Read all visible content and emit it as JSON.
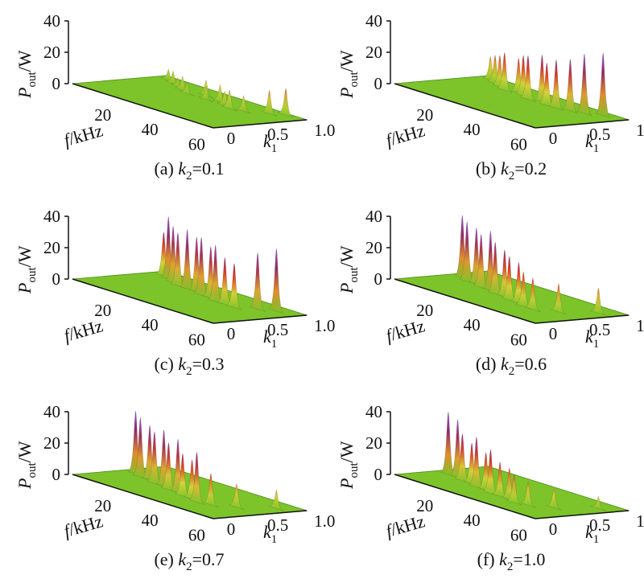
{
  "chart_data": [
    {
      "type": "surface3d",
      "caption": {
        "prefix": "(a) ",
        "var": "k",
        "sub": "2",
        "value": "=0.1"
      },
      "zlabel": {
        "var": "P",
        "sub": "out",
        "unit": "/W"
      },
      "xlabel": {
        "var": "f",
        "unit": "/kHz"
      },
      "ylabel": {
        "var": "k",
        "sub": "1"
      },
      "z_ticks": [
        "40",
        "20",
        "0"
      ],
      "x_ticks": [
        "20",
        "40",
        "60"
      ],
      "y_ticks": [
        "0",
        "0.5",
        "1.0"
      ],
      "zlim": [
        0,
        40
      ],
      "xlim": [
        5,
        65
      ],
      "ylim": [
        0,
        1
      ],
      "peaks": [
        {
          "f": 10,
          "k1": 0.9,
          "p": 7
        },
        {
          "f": 14,
          "k1": 0.85,
          "p": 8
        },
        {
          "f": 18,
          "k1": 0.8,
          "p": 6
        },
        {
          "f": 22,
          "k1": 0.75,
          "p": 9
        },
        {
          "f": 26,
          "k1": 0.7,
          "p": 7
        },
        {
          "f": 30,
          "k1": 0.8,
          "p": 10
        },
        {
          "f": 34,
          "k1": 0.7,
          "p": 8
        },
        {
          "f": 38,
          "k1": 0.75,
          "p": 11
        },
        {
          "f": 42,
          "k1": 0.7,
          "p": 9
        },
        {
          "f": 46,
          "k1": 0.65,
          "p": 12
        },
        {
          "f": 50,
          "k1": 0.7,
          "p": 10
        },
        {
          "f": 55,
          "k1": 0.85,
          "p": 15
        },
        {
          "f": 58,
          "k1": 0.95,
          "p": 17
        }
      ],
      "colormap": [
        "#7cc42a",
        "#d8d23a",
        "#e8401e",
        "#8a2a6a",
        "#9a52d8"
      ]
    },
    {
      "type": "surface3d",
      "caption": {
        "prefix": "(b) ",
        "var": "k",
        "sub": "2",
        "value": "=0.2"
      },
      "zlabel": {
        "var": "P",
        "sub": "out",
        "unit": "/W"
      },
      "xlabel": {
        "var": "f",
        "unit": "/kHz"
      },
      "ylabel": {
        "var": "k",
        "sub": "1"
      },
      "z_ticks": [
        "40",
        "20",
        "0"
      ],
      "x_ticks": [
        "20",
        "40",
        "60"
      ],
      "y_ticks": [
        "0",
        "0.5",
        "1.0"
      ],
      "zlim": [
        0,
        40
      ],
      "xlim": [
        5,
        65
      ],
      "ylim": [
        0,
        1
      ],
      "peaks": [
        {
          "f": 10,
          "k1": 0.9,
          "p": 15
        },
        {
          "f": 14,
          "k1": 0.85,
          "p": 18
        },
        {
          "f": 18,
          "k1": 0.8,
          "p": 20
        },
        {
          "f": 22,
          "k1": 0.75,
          "p": 24
        },
        {
          "f": 26,
          "k1": 0.8,
          "p": 22
        },
        {
          "f": 30,
          "k1": 0.75,
          "p": 26
        },
        {
          "f": 34,
          "k1": 0.7,
          "p": 28
        },
        {
          "f": 38,
          "k1": 0.75,
          "p": 30
        },
        {
          "f": 42,
          "k1": 0.7,
          "p": 27
        },
        {
          "f": 46,
          "k1": 0.7,
          "p": 31
        },
        {
          "f": 50,
          "k1": 0.75,
          "p": 33
        },
        {
          "f": 54,
          "k1": 0.8,
          "p": 38
        },
        {
          "f": 58,
          "k1": 0.9,
          "p": 40
        }
      ],
      "colormap": [
        "#7cc42a",
        "#d8d23a",
        "#e8401e",
        "#8a2a6a",
        "#9a52d8"
      ]
    },
    {
      "type": "surface3d",
      "caption": {
        "prefix": "(c) ",
        "var": "k",
        "sub": "2",
        "value": "=0.3"
      },
      "zlabel": {
        "var": "P",
        "sub": "out",
        "unit": "/W"
      },
      "xlabel": {
        "var": "f",
        "unit": "/kHz"
      },
      "ylabel": {
        "var": "k",
        "sub": "1"
      },
      "z_ticks": [
        "40",
        "20",
        "0"
      ],
      "x_ticks": [
        "20",
        "40",
        "60"
      ],
      "y_ticks": [
        "0",
        "0.5",
        "1.0"
      ],
      "zlim": [
        0,
        40
      ],
      "xlim": [
        5,
        65
      ],
      "ylim": [
        0,
        1
      ],
      "peaks": [
        {
          "f": 10,
          "k1": 0.85,
          "p": 28
        },
        {
          "f": 14,
          "k1": 0.8,
          "p": 40
        },
        {
          "f": 18,
          "k1": 0.75,
          "p": 36
        },
        {
          "f": 22,
          "k1": 0.7,
          "p": 34
        },
        {
          "f": 26,
          "k1": 0.7,
          "p": 38
        },
        {
          "f": 30,
          "k1": 0.7,
          "p": 35
        },
        {
          "f": 34,
          "k1": 0.65,
          "p": 37
        },
        {
          "f": 38,
          "k1": 0.65,
          "p": 33
        },
        {
          "f": 42,
          "k1": 0.6,
          "p": 36
        },
        {
          "f": 46,
          "k1": 0.6,
          "p": 30
        },
        {
          "f": 50,
          "k1": 0.6,
          "p": 28
        },
        {
          "f": 54,
          "k1": 0.75,
          "p": 36
        },
        {
          "f": 58,
          "k1": 0.85,
          "p": 40
        }
      ],
      "colormap": [
        "#7cc42a",
        "#d8d23a",
        "#e8401e",
        "#8a2a6a",
        "#9a52d8"
      ]
    },
    {
      "type": "surface3d",
      "caption": {
        "prefix": "(d) ",
        "var": "k",
        "sub": "2",
        "value": "=0.6"
      },
      "zlabel": {
        "var": "P",
        "sub": "out",
        "unit": "/W"
      },
      "xlabel": {
        "var": "f",
        "unit": "/kHz"
      },
      "ylabel": {
        "var": "k",
        "sub": "1"
      },
      "z_ticks": [
        "40",
        "20",
        "0"
      ],
      "x_ticks": [
        "20",
        "40",
        "60"
      ],
      "y_ticks": [
        "0",
        "0.5",
        "1.0"
      ],
      "zlim": [
        0,
        40
      ],
      "xlim": [
        5,
        65
      ],
      "ylim": [
        0,
        1
      ],
      "peaks": [
        {
          "f": 10,
          "k1": 0.6,
          "p": 40
        },
        {
          "f": 14,
          "k1": 0.55,
          "p": 38
        },
        {
          "f": 18,
          "k1": 0.55,
          "p": 36
        },
        {
          "f": 22,
          "k1": 0.5,
          "p": 34
        },
        {
          "f": 26,
          "k1": 0.5,
          "p": 38
        },
        {
          "f": 30,
          "k1": 0.45,
          "p": 33
        },
        {
          "f": 34,
          "k1": 0.45,
          "p": 30
        },
        {
          "f": 38,
          "k1": 0.4,
          "p": 28
        },
        {
          "f": 42,
          "k1": 0.4,
          "p": 26
        },
        {
          "f": 46,
          "k1": 0.35,
          "p": 22
        },
        {
          "f": 50,
          "k1": 0.35,
          "p": 20
        },
        {
          "f": 55,
          "k1": 0.5,
          "p": 18
        },
        {
          "f": 60,
          "k1": 0.8,
          "p": 16
        }
      ],
      "colormap": [
        "#7cc42a",
        "#d8d23a",
        "#e8401e",
        "#8a2a6a",
        "#9a52d8"
      ]
    },
    {
      "type": "surface3d",
      "caption": {
        "prefix": "(e) ",
        "var": "k",
        "sub": "2",
        "value": "=0.7"
      },
      "zlabel": {
        "var": "P",
        "sub": "out",
        "unit": "/W"
      },
      "xlabel": {
        "var": "f",
        "unit": "/kHz"
      },
      "ylabel": {
        "var": "k",
        "sub": "1"
      },
      "z_ticks": [
        "40",
        "20",
        "0"
      ],
      "x_ticks": [
        "20",
        "40",
        "60"
      ],
      "y_ticks": [
        "0",
        "0.5",
        "1.0"
      ],
      "zlim": [
        0,
        40
      ],
      "xlim": [
        5,
        65
      ],
      "ylim": [
        0,
        1
      ],
      "peaks": [
        {
          "f": 10,
          "k1": 0.55,
          "p": 40
        },
        {
          "f": 14,
          "k1": 0.5,
          "p": 38
        },
        {
          "f": 18,
          "k1": 0.5,
          "p": 35
        },
        {
          "f": 22,
          "k1": 0.45,
          "p": 33
        },
        {
          "f": 26,
          "k1": 0.45,
          "p": 36
        },
        {
          "f": 30,
          "k1": 0.4,
          "p": 30
        },
        {
          "f": 34,
          "k1": 0.4,
          "p": 34
        },
        {
          "f": 38,
          "k1": 0.35,
          "p": 27
        },
        {
          "f": 42,
          "k1": 0.35,
          "p": 25
        },
        {
          "f": 46,
          "k1": 0.3,
          "p": 32
        },
        {
          "f": 50,
          "k1": 0.35,
          "p": 20
        },
        {
          "f": 55,
          "k1": 0.5,
          "p": 15
        },
        {
          "f": 60,
          "k1": 0.8,
          "p": 12
        }
      ],
      "colormap": [
        "#7cc42a",
        "#d8d23a",
        "#e8401e",
        "#8a2a6a",
        "#9a52d8"
      ]
    },
    {
      "type": "surface3d",
      "caption": {
        "prefix": "(f) ",
        "var": "k",
        "sub": "2",
        "value": "=1.0"
      },
      "zlabel": {
        "var": "P",
        "sub": "out",
        "unit": "/W"
      },
      "xlabel": {
        "var": "f",
        "unit": "/kHz"
      },
      "ylabel": {
        "var": "k",
        "sub": "1"
      },
      "z_ticks": [
        "40",
        "20",
        "0"
      ],
      "x_ticks": [
        "20",
        "40",
        "60"
      ],
      "y_ticks": [
        "0",
        "0.5",
        "1.0"
      ],
      "zlim": [
        0,
        40
      ],
      "xlim": [
        5,
        65
      ],
      "ylim": [
        0,
        1
      ],
      "peaks": [
        {
          "f": 10,
          "k1": 0.45,
          "p": 40
        },
        {
          "f": 14,
          "k1": 0.45,
          "p": 37
        },
        {
          "f": 18,
          "k1": 0.4,
          "p": 30
        },
        {
          "f": 22,
          "k1": 0.4,
          "p": 26
        },
        {
          "f": 26,
          "k1": 0.35,
          "p": 32
        },
        {
          "f": 30,
          "k1": 0.35,
          "p": 24
        },
        {
          "f": 34,
          "k1": 0.3,
          "p": 28
        },
        {
          "f": 38,
          "k1": 0.3,
          "p": 22
        },
        {
          "f": 42,
          "k1": 0.3,
          "p": 20
        },
        {
          "f": 46,
          "k1": 0.25,
          "p": 18
        },
        {
          "f": 50,
          "k1": 0.3,
          "p": 15
        },
        {
          "f": 55,
          "k1": 0.45,
          "p": 12
        },
        {
          "f": 60,
          "k1": 0.8,
          "p": 8
        }
      ],
      "colormap": [
        "#7cc42a",
        "#d8d23a",
        "#e8401e",
        "#8a2a6a",
        "#9a52d8"
      ]
    }
  ]
}
